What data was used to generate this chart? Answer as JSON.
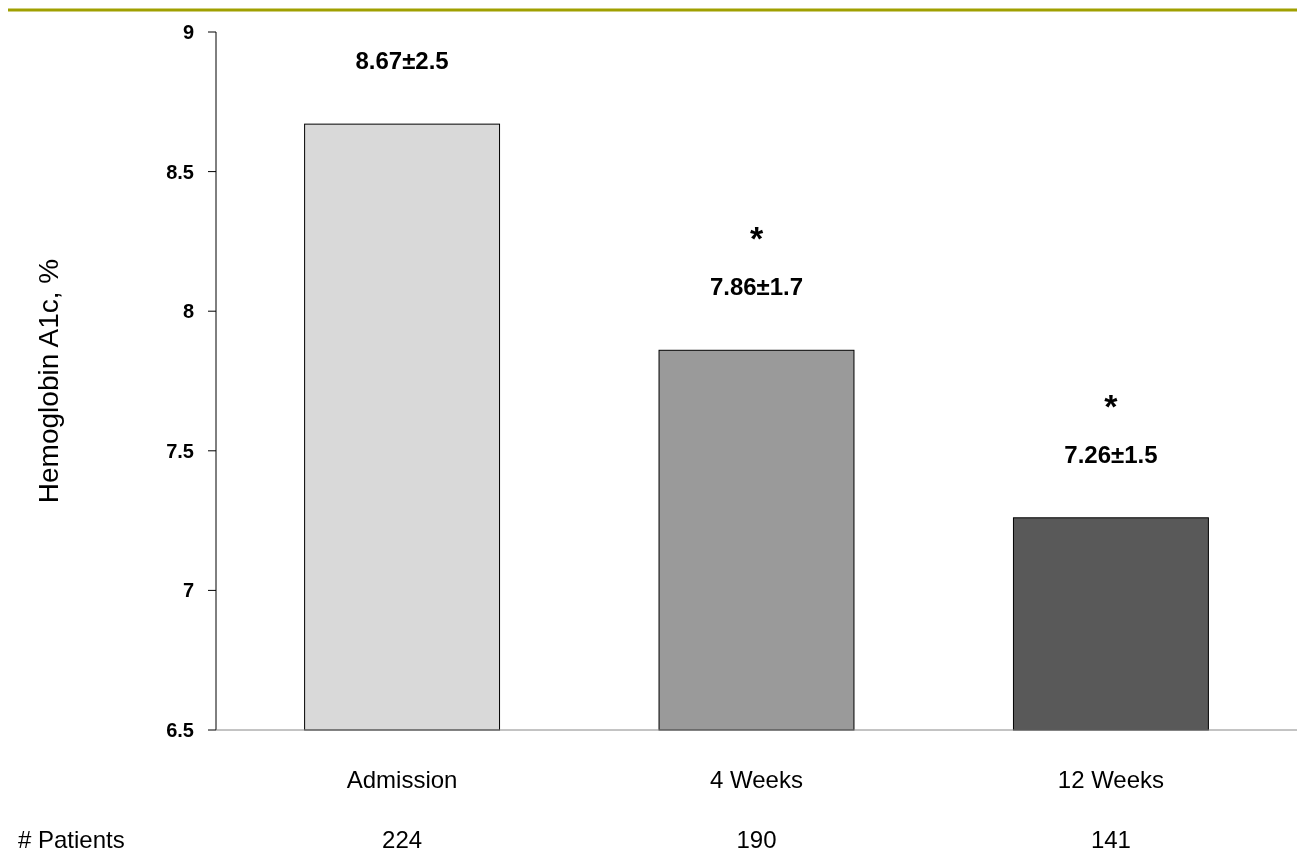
{
  "chart_data": {
    "type": "bar",
    "ylabel": "Hemoglobin A1c, %",
    "categories": [
      "Admission",
      "4 Weeks",
      "12 Weeks"
    ],
    "values": [
      8.67,
      7.86,
      7.26
    ],
    "colors": [
      "#d9d9d9",
      "#9a9a9a",
      "#595959"
    ],
    "value_labels": [
      "8.67±2.5",
      "7.86±1.7",
      "7.26±1.5"
    ],
    "ylim": [
      6.5,
      9
    ],
    "yticks": [
      6.5,
      7,
      7.5,
      8,
      8.5,
      9
    ],
    "grid": false,
    "annotations": [
      "*",
      "*",
      "# Patients",
      "224",
      "190",
      "141"
    ]
  }
}
